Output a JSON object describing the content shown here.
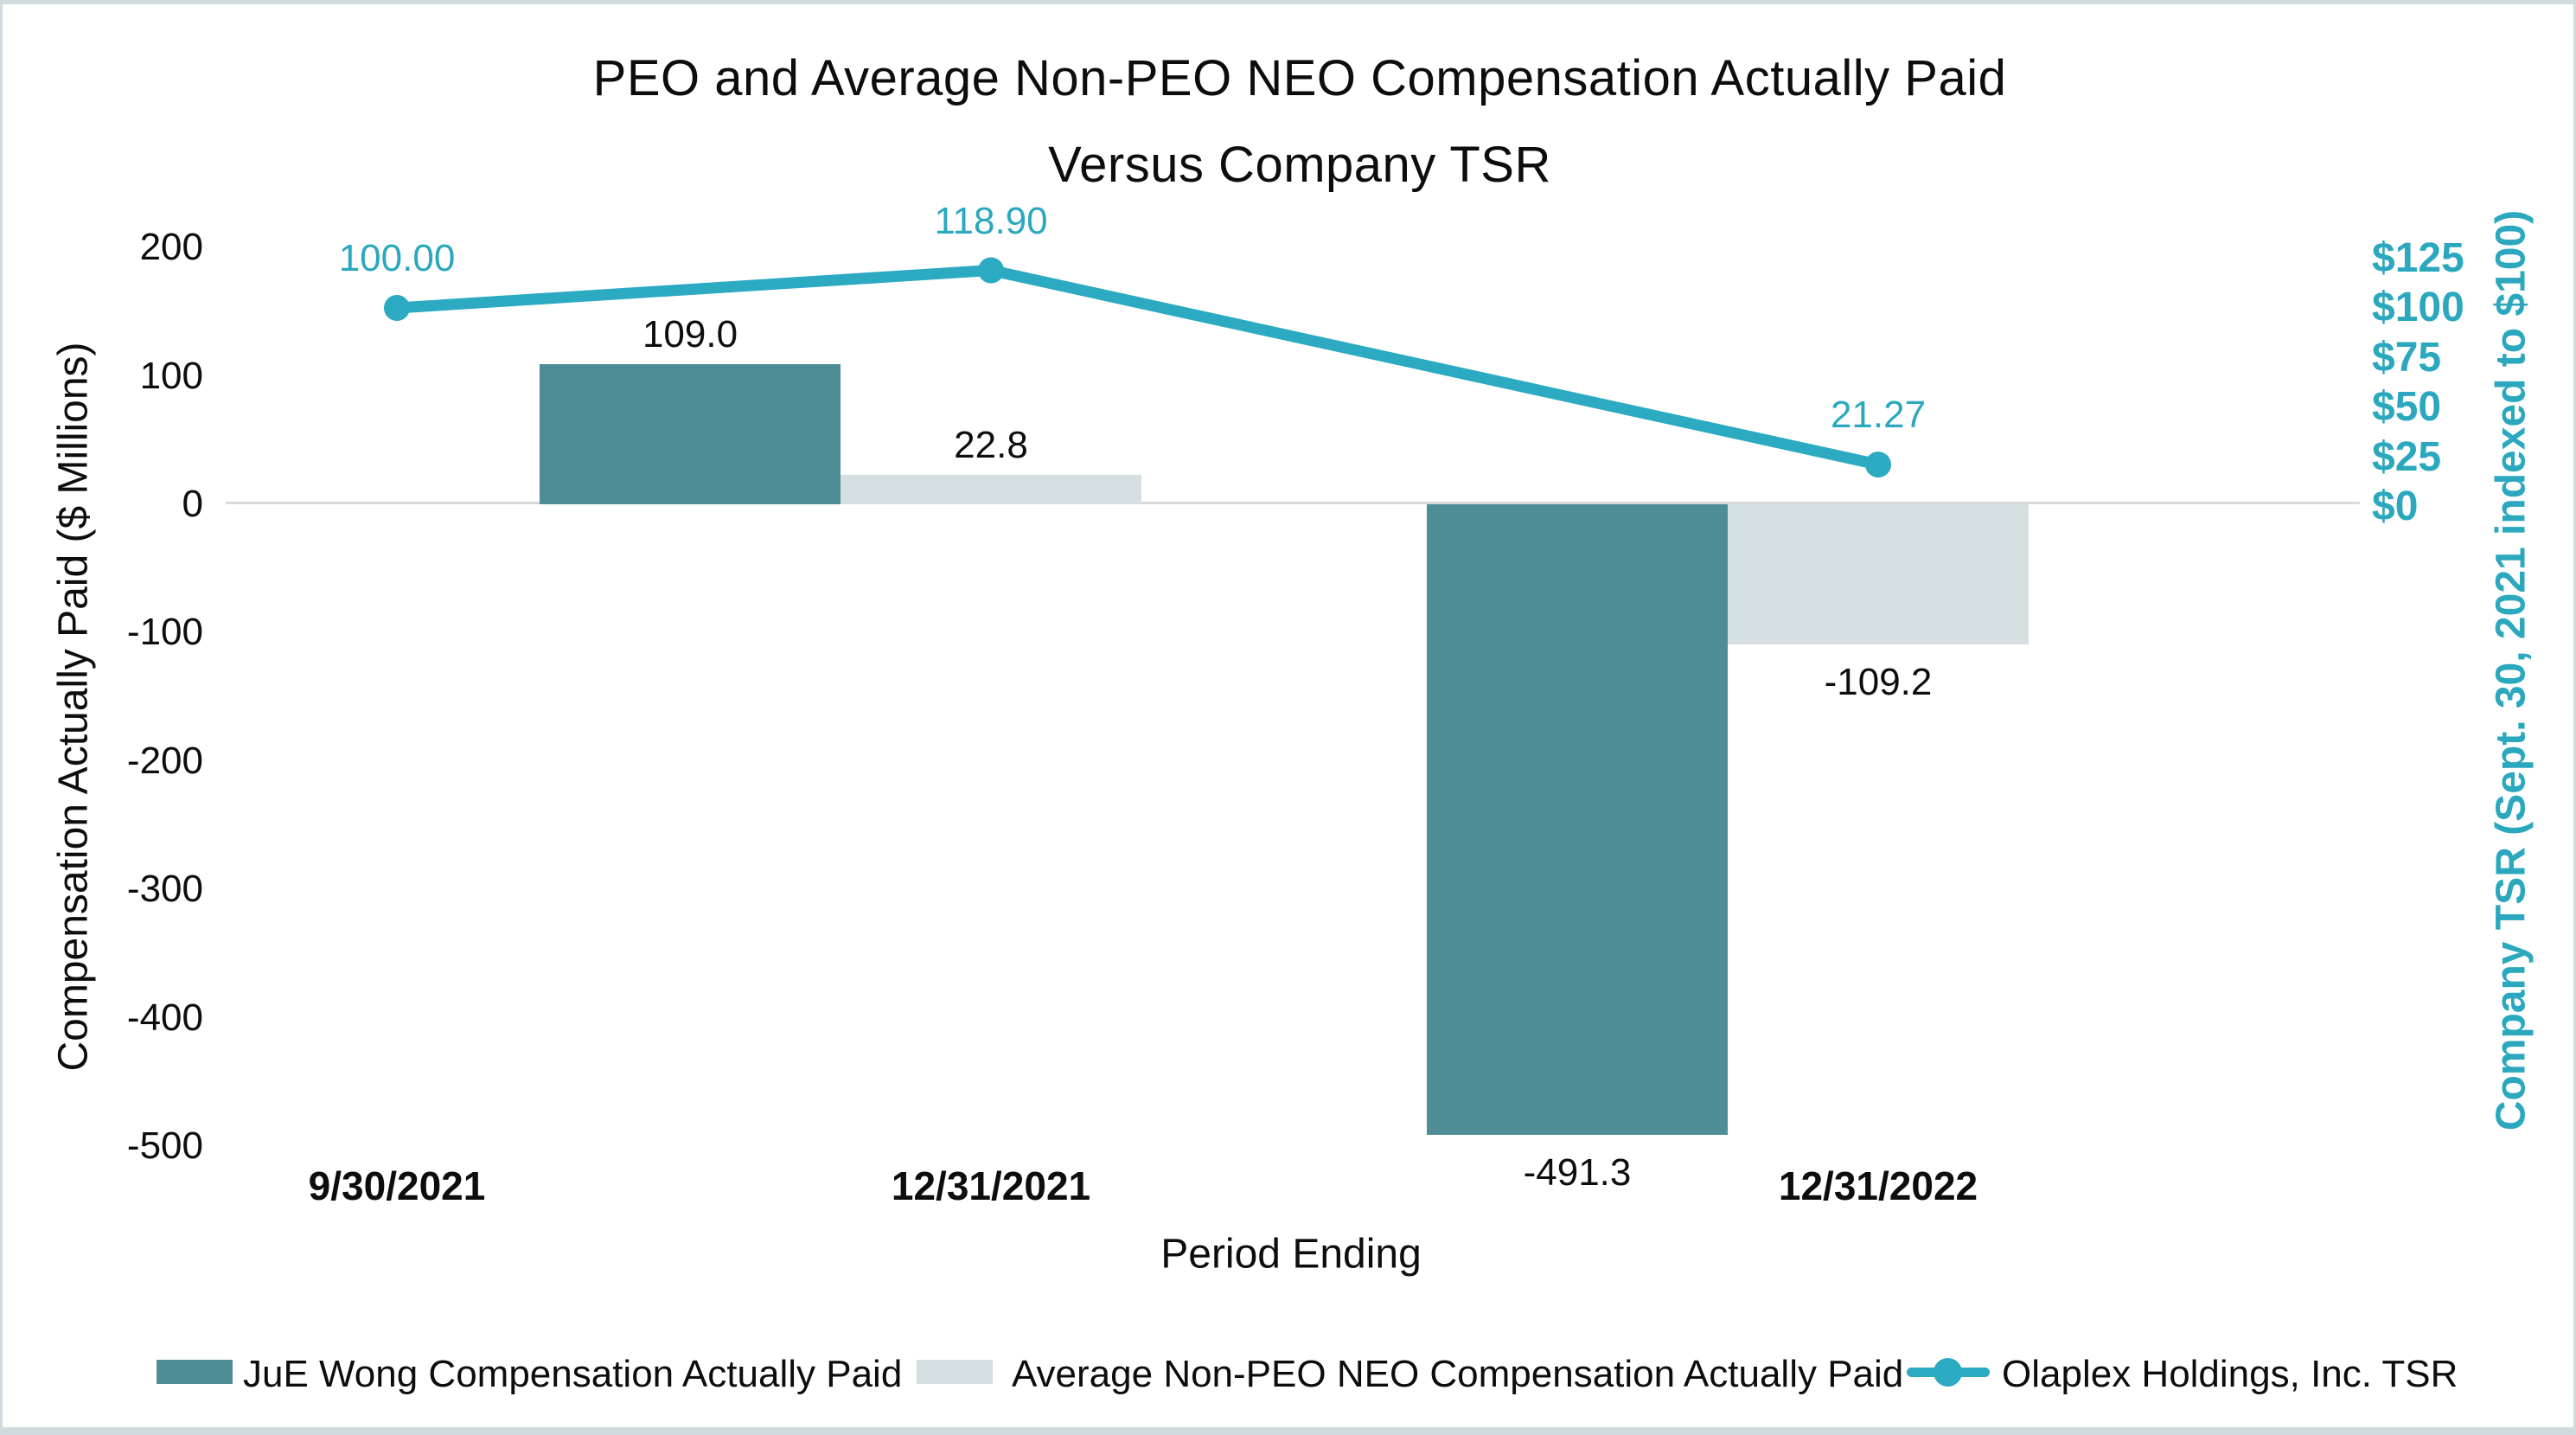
{
  "chart_data": {
    "type": "combo-bar-line",
    "title_line1": "PEO and Average Non-PEO NEO Compensation Actually Paid",
    "title_line2": "Versus Company TSR",
    "categories": [
      "9/30/2021",
      "12/31/2021",
      "12/31/2022"
    ],
    "series": [
      {
        "name": "JuE Wong Compensation Actually Paid",
        "type": "bar",
        "axis": "left",
        "values": [
          null,
          109.0,
          -491.3
        ],
        "value_labels": [
          null,
          "109.0",
          "-491.3"
        ]
      },
      {
        "name": "Average Non-PEO NEO Compensation Actually Paid",
        "type": "bar",
        "axis": "left",
        "values": [
          null,
          22.8,
          -109.2
        ],
        "value_labels": [
          null,
          "22.8",
          "-109.2"
        ]
      },
      {
        "name": "Olaplex Holdings, Inc. TSR",
        "type": "line",
        "axis": "right",
        "values": [
          100.0,
          118.9,
          21.27
        ],
        "value_labels": [
          "100.00",
          "118.90",
          "21.27"
        ]
      }
    ],
    "xlabel": "Period Ending",
    "left_axis": {
      "title": "Compensation Actually Paid ($ Millions)",
      "tick_labels": [
        "200",
        "100",
        "0",
        "-100",
        "-200",
        "-300",
        "-400",
        "-500"
      ],
      "tick_values": [
        200,
        100,
        0,
        -100,
        -200,
        -300,
        -400,
        -500
      ],
      "range": [
        -500,
        200
      ]
    },
    "right_axis": {
      "title": "Company TSR (Sept. 30, 2021 indexed to $100)",
      "tick_labels": [
        "$125",
        "$100",
        "$75",
        "$50",
        "$25",
        "$0"
      ],
      "tick_values": [
        125,
        100,
        75,
        50,
        25,
        0
      ],
      "range": [
        0,
        125
      ]
    },
    "gridlines": "zero-only",
    "legend_position": "bottom"
  },
  "colors": {
    "peo_bar": "#4f8d96",
    "neo_bar": "#d5dee1",
    "tsr_line": "#2baac2",
    "tsr_text": "#2ba8be",
    "gridline": "#d9d9d9",
    "frame_border": "#cfdbdf",
    "text": "#0d0d0d",
    "background": "#ffffff"
  }
}
